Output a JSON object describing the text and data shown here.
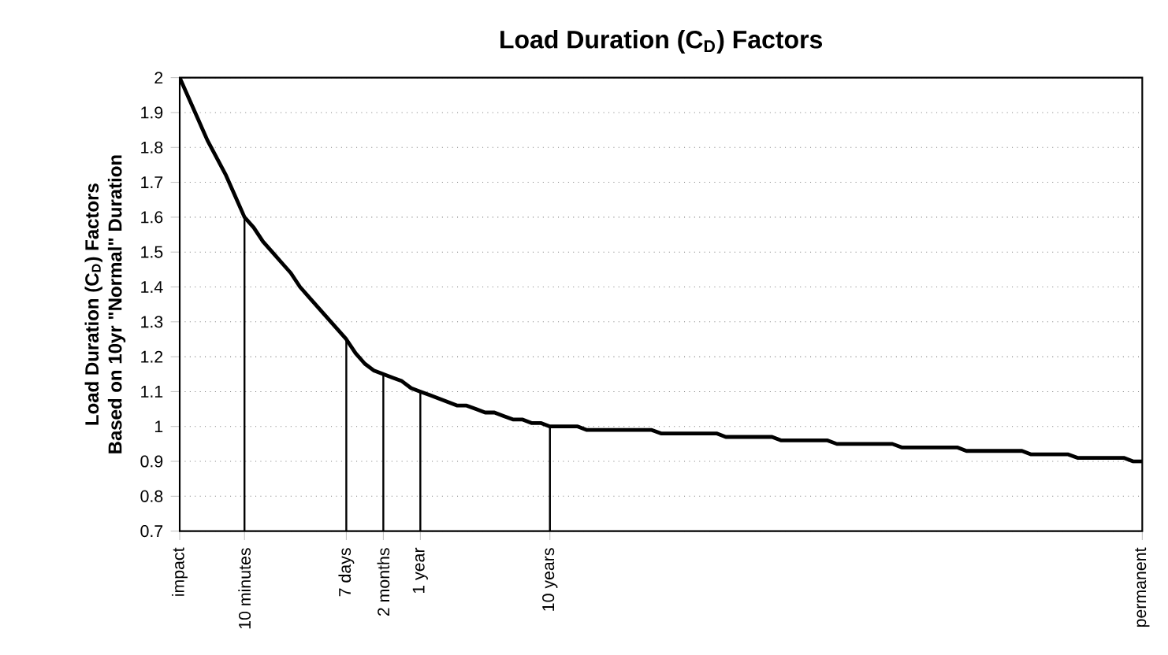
{
  "chart_data": {
    "type": "line",
    "title": "Load Duration (C$_{D}$) Factors",
    "ylabel": "Load Duration (C$_{D}$) Factors",
    "annotations": [
      "Based on 10yr \"Normal\" Duration"
    ],
    "categories": [
      "impact",
      null,
      null,
      null,
      null,
      null,
      null,
      "10 minutes",
      null,
      null,
      null,
      null,
      null,
      null,
      null,
      null,
      null,
      null,
      "7 days",
      null,
      null,
      null,
      "2 months",
      null,
      null,
      null,
      "1 year",
      null,
      null,
      null,
      null,
      null,
      null,
      null,
      null,
      null,
      null,
      null,
      null,
      null,
      "10 years",
      null,
      null,
      null,
      null,
      null,
      null,
      null,
      null,
      null,
      null,
      null,
      null,
      null,
      null,
      null,
      null,
      null,
      null,
      null,
      null,
      null,
      null,
      null,
      null,
      null,
      null,
      null,
      null,
      null,
      null,
      null,
      null,
      null,
      null,
      null,
      null,
      null,
      null,
      null,
      null,
      null,
      null,
      null,
      null,
      null,
      null,
      null,
      null,
      null,
      null,
      null,
      null,
      null,
      null,
      null,
      null,
      null,
      null,
      null,
      null,
      null,
      null,
      null,
      "permanent"
    ],
    "series": [
      {
        "color": "#000000",
        "values": [
          2.0,
          1.94,
          1.88,
          1.82,
          1.77,
          1.72,
          1.66,
          1.6,
          1.57,
          1.53,
          1.5,
          1.47,
          1.44,
          1.4,
          1.37,
          1.34,
          1.31,
          1.28,
          1.25,
          1.21,
          1.18,
          1.16,
          1.15,
          1.14,
          1.13,
          1.11,
          1.1,
          1.09,
          1.08,
          1.07,
          1.06,
          1.06,
          1.05,
          1.04,
          1.04,
          1.03,
          1.02,
          1.02,
          1.01,
          1.01,
          1.0,
          1.0,
          1.0,
          1.0,
          0.99,
          0.99,
          0.99,
          0.99,
          0.99,
          0.99,
          0.99,
          0.99,
          0.98,
          0.98,
          0.98,
          0.98,
          0.98,
          0.98,
          0.98,
          0.97,
          0.97,
          0.97,
          0.97,
          0.97,
          0.97,
          0.96,
          0.96,
          0.96,
          0.96,
          0.96,
          0.96,
          0.95,
          0.95,
          0.95,
          0.95,
          0.95,
          0.95,
          0.95,
          0.94,
          0.94,
          0.94,
          0.94,
          0.94,
          0.94,
          0.94,
          0.93,
          0.93,
          0.93,
          0.93,
          0.93,
          0.93,
          0.93,
          0.92,
          0.92,
          0.92,
          0.92,
          0.92,
          0.91,
          0.91,
          0.91,
          0.91,
          0.91,
          0.91,
          0.9,
          0.9
        ]
      },
      {
        "type": "bar",
        "color": "#000000",
        "values": [
          null,
          null,
          null,
          null,
          null,
          null,
          null,
          1.6,
          null,
          null,
          null,
          null,
          null,
          null,
          null,
          null,
          null,
          null,
          1.25,
          null,
          null,
          null,
          1.15,
          null,
          null,
          null,
          1.1,
          null,
          null,
          null,
          null,
          null,
          null,
          null,
          null,
          null,
          null,
          null,
          null,
          null,
          1.0,
          null,
          null,
          null,
          null,
          null,
          null,
          null,
          null,
          null,
          null,
          null,
          null,
          null,
          null,
          null,
          null,
          null,
          null,
          null,
          null,
          null,
          null,
          null,
          null,
          null,
          null,
          null,
          null,
          null,
          null,
          null,
          null,
          null,
          null,
          null,
          null,
          null,
          null,
          null,
          null,
          null,
          null,
          null,
          null,
          null,
          null,
          null,
          null,
          null,
          null,
          null,
          null,
          null,
          null,
          null,
          null,
          null,
          null,
          null,
          null,
          null,
          null,
          null,
          null
        ]
      }
    ],
    "ylim": [
      0.7,
      2
    ],
    "yticks": [
      0.7,
      0.8,
      0.9,
      1,
      1.1,
      1.2,
      1.3,
      1.4,
      1.5,
      1.6,
      1.7,
      1.8,
      1.9,
      2
    ],
    "grid": "y",
    "marker": "none",
    "line_style": "solid"
  }
}
